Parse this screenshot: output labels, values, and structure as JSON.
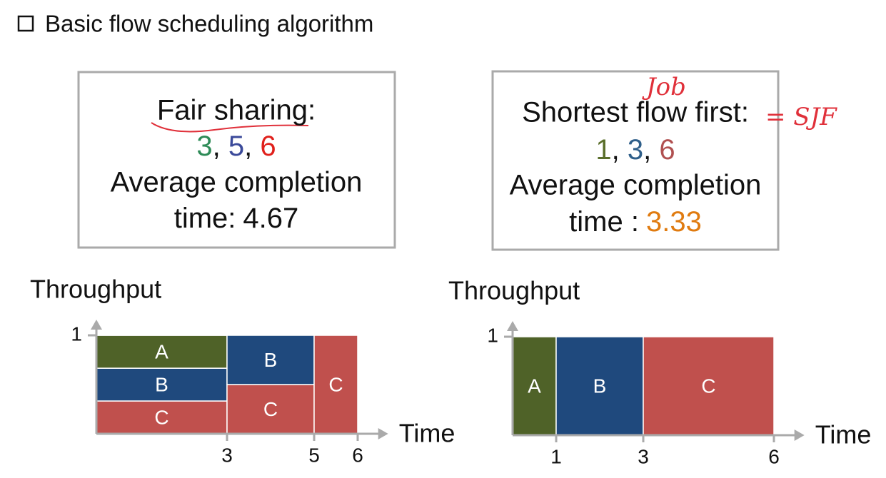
{
  "title": "Basic flow scheduling algorithm",
  "panels": [
    {
      "heading": "Fair sharing:",
      "completion": {
        "values": [
          3,
          5,
          6
        ],
        "colors": [
          "#2e8b57",
          "#3b4a9a",
          "#e0201b"
        ]
      },
      "average_label": "Average completion",
      "time_label": "time:",
      "average": 4.67,
      "average_color": "#111111",
      "chart": {
        "ylabel": "Throughput",
        "xlabel": "Time",
        "yticks": [
          1
        ],
        "xticks": [
          3,
          5,
          6
        ],
        "xlim": [
          0,
          6.7
        ],
        "ylim": [
          0,
          1
        ],
        "segments": [
          {
            "label": "C",
            "start": 0,
            "end": 3,
            "rate": 0.333,
            "color": "#c0504d"
          },
          {
            "label": "B",
            "start": 0,
            "end": 3,
            "rate": 0.333,
            "color": "#1f497d"
          },
          {
            "label": "A",
            "start": 0,
            "end": 3,
            "rate": 0.333,
            "color": "#4f6228"
          },
          {
            "label": "C",
            "start": 3,
            "end": 5,
            "rate": 0.5,
            "color": "#c0504d"
          },
          {
            "label": "B",
            "start": 3,
            "end": 5,
            "rate": 0.5,
            "color": "#1f497d"
          },
          {
            "label": "C",
            "start": 5,
            "end": 6,
            "rate": 1,
            "color": "#c0504d"
          }
        ]
      }
    },
    {
      "heading": "Shortest flow first:",
      "completion": {
        "values": [
          1,
          3,
          6
        ],
        "colors": [
          "#5a6e2a",
          "#2f5f8a",
          "#b05050"
        ]
      },
      "average_label": "Average completion",
      "time_label": "time :",
      "average": 3.33,
      "average_color": "#e07b10",
      "chart": {
        "ylabel": "Throughput",
        "xlabel": "Time",
        "yticks": [
          1
        ],
        "xticks": [
          1,
          3,
          6
        ],
        "xlim": [
          0,
          6.7
        ],
        "ylim": [
          0,
          1
        ],
        "segments": [
          {
            "label": "A",
            "start": 0,
            "end": 1,
            "rate": 1,
            "color": "#4f6228"
          },
          {
            "label": "B",
            "start": 1,
            "end": 3,
            "rate": 1,
            "color": "#1f497d"
          },
          {
            "label": "C",
            "start": 3,
            "end": 6,
            "rate": 1,
            "color": "#c0504d"
          }
        ]
      }
    }
  ],
  "annotations": [
    "Job",
    "= SJF"
  ]
}
